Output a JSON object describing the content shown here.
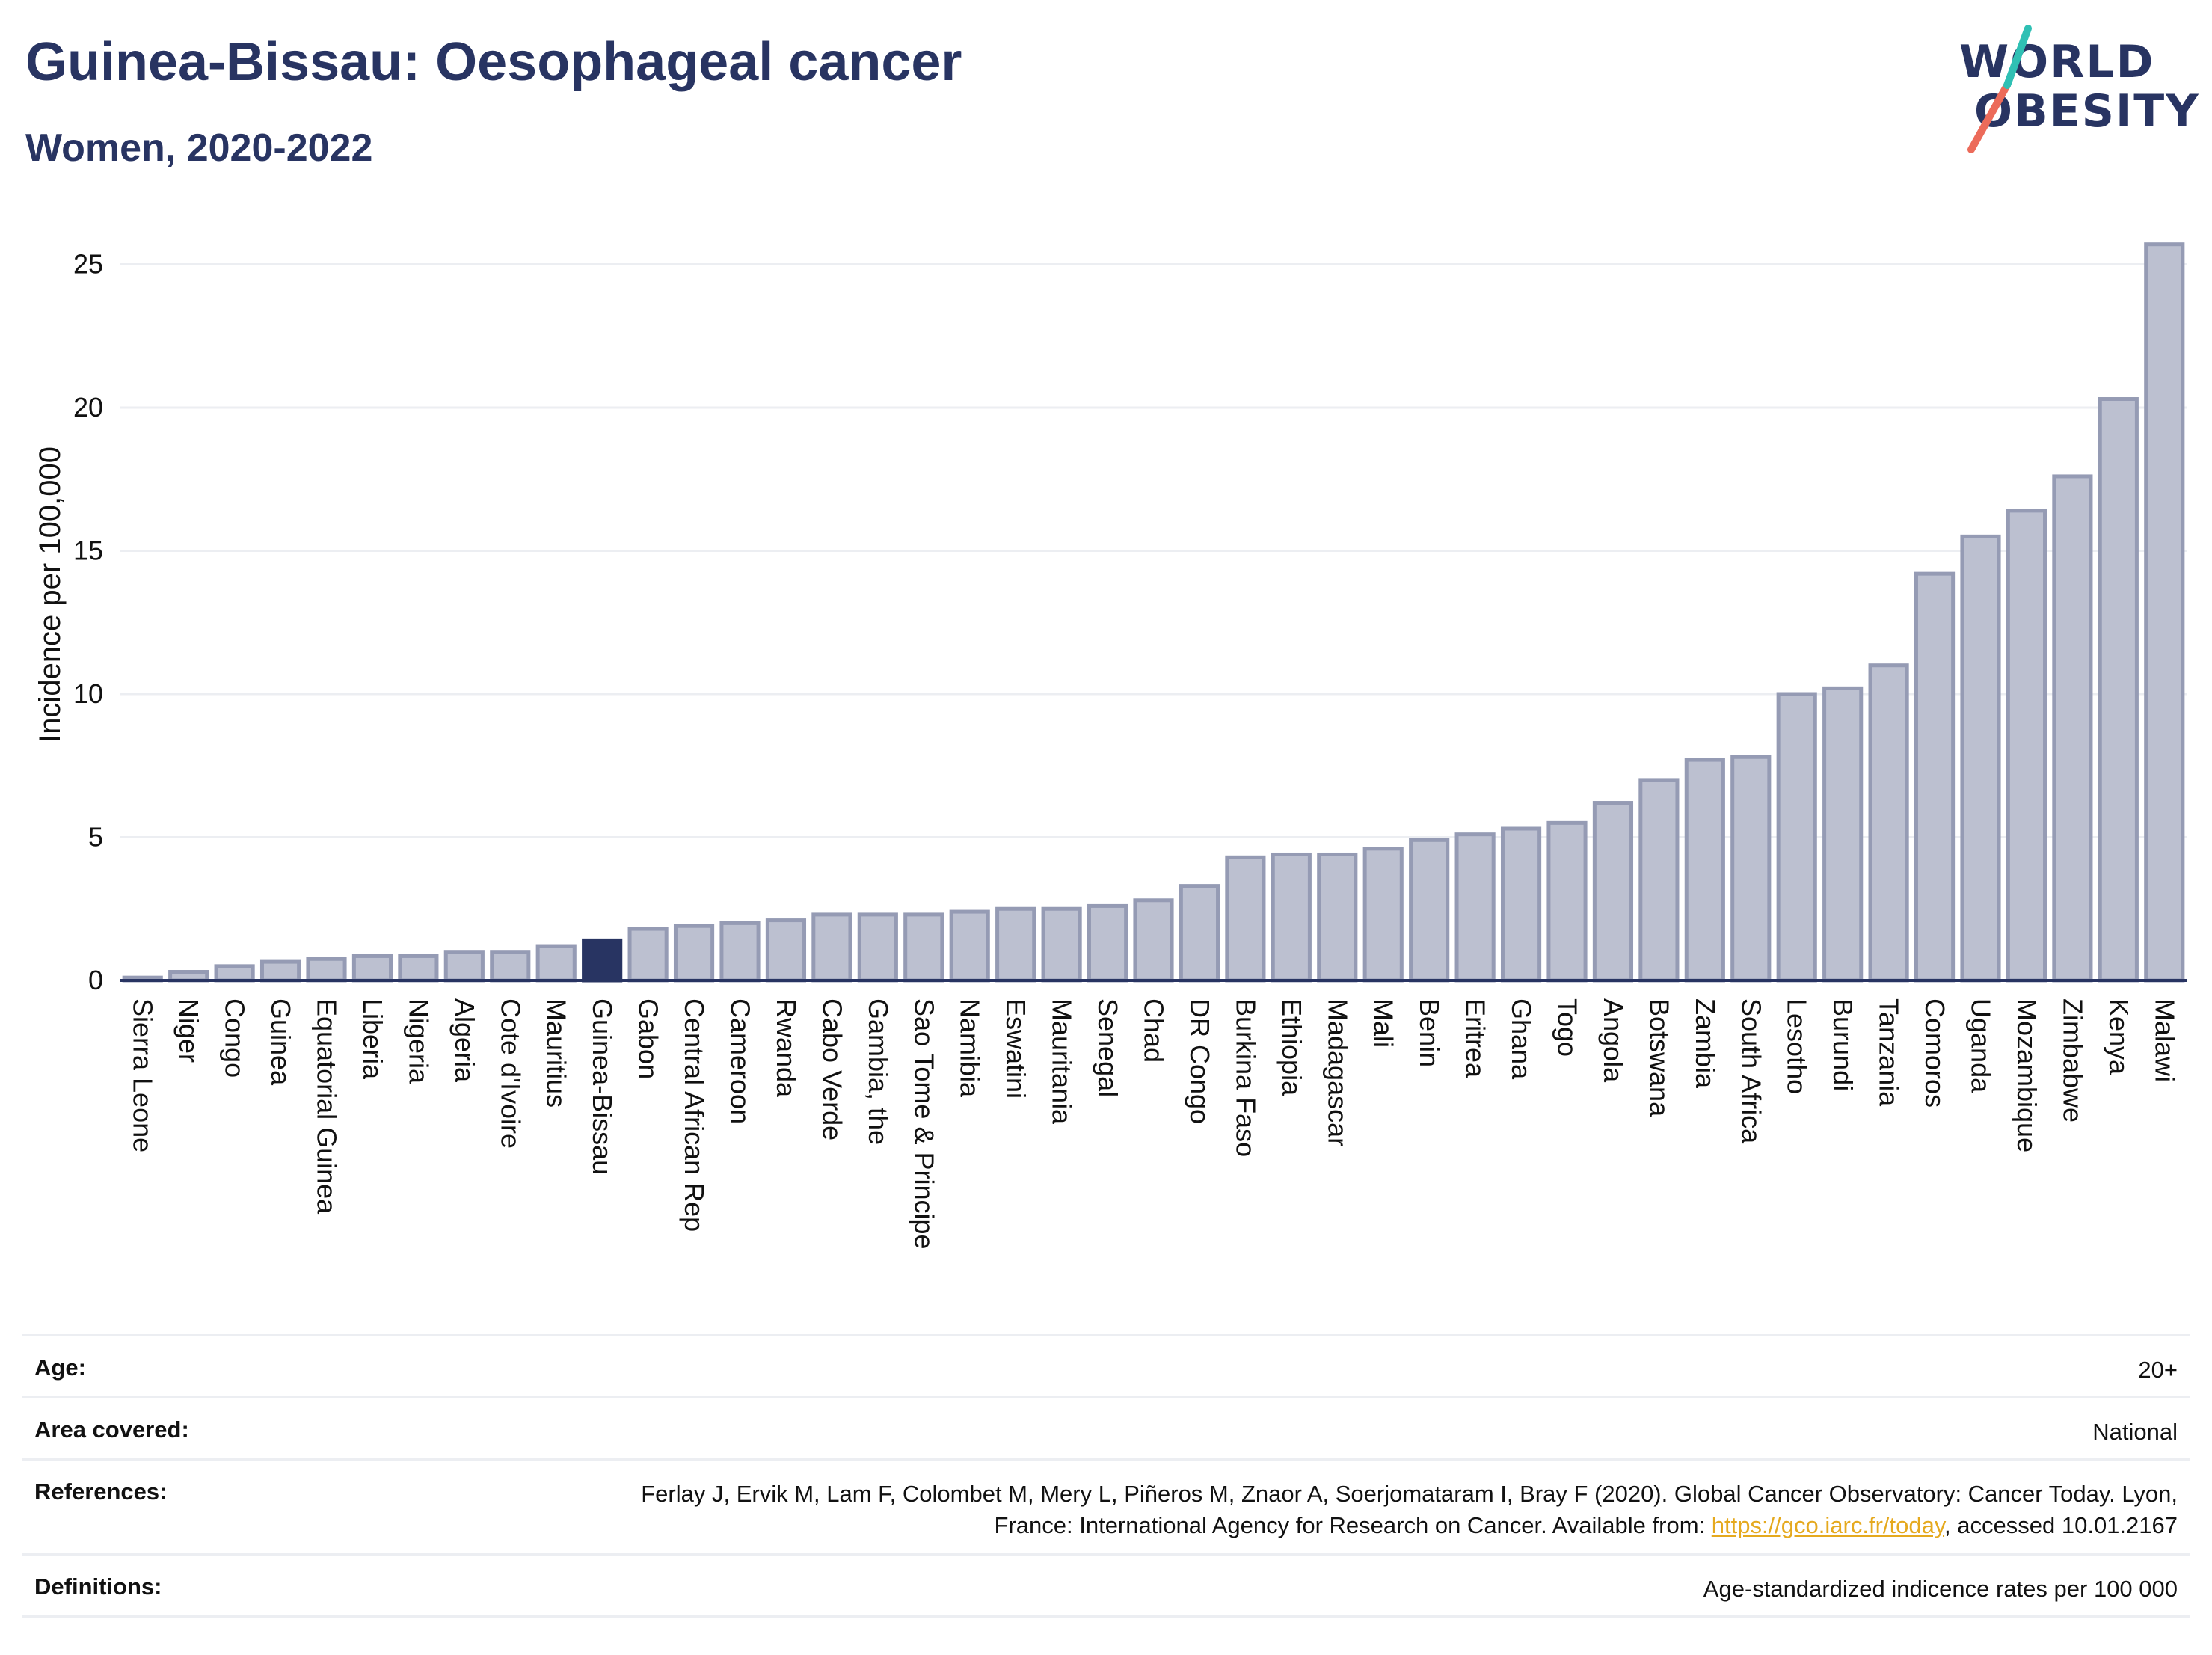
{
  "header": {
    "title": "Guinea-Bissau: Oesophageal cancer",
    "subtitle": "Women, 2020-2022",
    "logo": {
      "line1": "WORLD",
      "line2": "OBESITY"
    }
  },
  "chart_data": {
    "type": "bar",
    "ylabel": "Incidence per 100,000",
    "xlabel": "",
    "ylim": [
      0,
      26
    ],
    "yticks": [
      0,
      5,
      10,
      15,
      20,
      25
    ],
    "grid": true,
    "highlight": "Guinea-Bissau",
    "colors": {
      "bar": "#bcc0d0",
      "bar_border": "#959bb4",
      "highlight": "#283462",
      "grid": "#eceef2",
      "axis": "#283462"
    },
    "categories": [
      "Sierra Leone",
      "Niger",
      "Congo",
      "Guinea",
      "Equatorial Guinea",
      "Liberia",
      "Nigeria",
      "Algeria",
      "Cote d'Ivoire",
      "Mauritius",
      "Guinea-Bissau",
      "Gabon",
      "Central African Rep",
      "Cameroon",
      "Rwanda",
      "Cabo Verde",
      "Gambia, the",
      "Sao Tome & Principe",
      "Namibia",
      "Eswatini",
      "Mauritania",
      "Senegal",
      "Chad",
      "DR Congo",
      "Burkina Faso",
      "Ethiopia",
      "Madagascar",
      "Mali",
      "Benin",
      "Eritrea",
      "Ghana",
      "Togo",
      "Angola",
      "Botswana",
      "Zambia",
      "South Africa",
      "Lesotho",
      "Burundi",
      "Tanzania",
      "Comoros",
      "Uganda",
      "Mozambique",
      "Zimbabwe",
      "Kenya",
      "Malawi"
    ],
    "values": [
      0.1,
      0.3,
      0.5,
      0.65,
      0.75,
      0.85,
      0.85,
      1.0,
      1.0,
      1.2,
      1.4,
      1.8,
      1.9,
      2.0,
      2.1,
      2.3,
      2.3,
      2.3,
      2.4,
      2.5,
      2.5,
      2.6,
      2.8,
      3.3,
      4.3,
      4.4,
      4.4,
      4.6,
      4.9,
      5.1,
      5.3,
      5.5,
      6.2,
      7.0,
      7.7,
      7.8,
      10.0,
      10.2,
      11.0,
      14.2,
      15.5,
      16.4,
      17.6,
      20.3,
      25.7
    ]
  },
  "meta": {
    "age_label": "Age:",
    "age_value": "20+",
    "area_label": "Area covered:",
    "area_value": "National",
    "ref_label": "References:",
    "ref_text": "Ferlay J, Ervik M, Lam F, Colombet M, Mery L, Piñeros M, Znaor A, Soerjomataram I, Bray F (2020). Global Cancer Observatory: Cancer Today. Lyon, France: International Agency for Research on Cancer. Available from: ",
    "ref_link": "https://gco.iarc.fr/today",
    "ref_tail": ", accessed 10.01.2167",
    "def_label": "Definitions:",
    "def_value": "Age-standardized indicence rates per 100 000"
  }
}
